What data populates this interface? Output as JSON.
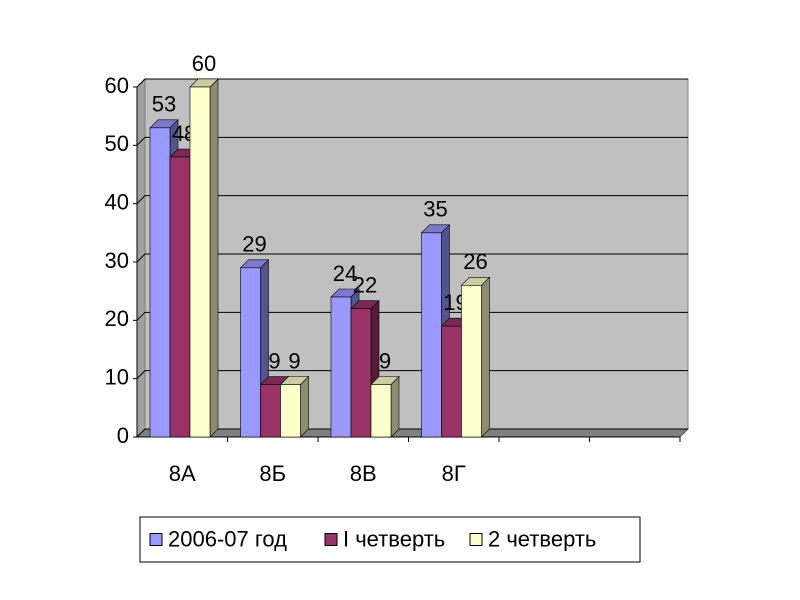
{
  "chart_data": {
    "type": "bar",
    "categories": [
      "8А",
      "8Б",
      "8В",
      "8Г",
      null,
      null
    ],
    "series": [
      {
        "name": "2006-07 год",
        "color": "#9999ff",
        "values": [
          53,
          29,
          24,
          35,
          null,
          null
        ]
      },
      {
        "name": "I четверть",
        "color": "#993366",
        "values": [
          48,
          9,
          22,
          19,
          null,
          null
        ]
      },
      {
        "name": "2 четверть",
        "color": "#ffffcc",
        "values": [
          60,
          9,
          9,
          26,
          null,
          null
        ]
      }
    ],
    "ylim": [
      0,
      60
    ],
    "yticks": [
      0,
      10,
      20,
      30,
      40,
      50,
      60
    ],
    "grid": true,
    "legend": "bottom"
  }
}
